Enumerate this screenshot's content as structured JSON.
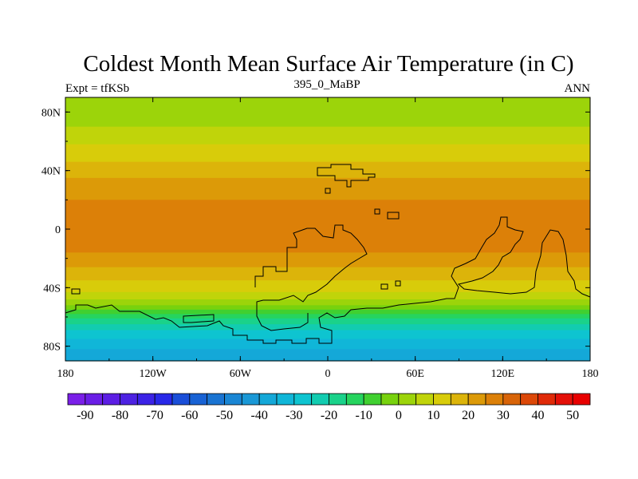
{
  "chart_data": {
    "type": "heatmap",
    "title": "Coldest Month Mean Surface Air Temperature (in C)",
    "left_label": "Expt = tfKSb",
    "center_label": "395_0_MaBP",
    "right_label": "ANN",
    "x_ticks": [
      "180",
      "120W",
      "60W",
      "0",
      "60E",
      "120E",
      "180"
    ],
    "x_tick_values": [
      -180,
      -120,
      -60,
      0,
      60,
      120,
      180
    ],
    "y_ticks": [
      "80N",
      "40N",
      "0",
      "40S",
      "80S"
    ],
    "y_tick_values": [
      80,
      40,
      0,
      -40,
      -80
    ],
    "xlim": [
      -180,
      180
    ],
    "ylim": [
      -90,
      90
    ],
    "zonal_profile": {
      "lat": [
        90,
        80,
        70,
        60,
        50,
        40,
        30,
        20,
        10,
        0,
        -10,
        -20,
        -30,
        -40,
        -45,
        -50,
        -55,
        -60,
        -65,
        -70,
        -75,
        -80,
        -85,
        -90
      ],
      "temp": [
        1,
        3,
        5,
        9,
        13,
        18,
        22,
        25,
        28,
        30,
        28,
        23,
        18,
        12,
        8,
        3,
        -5,
        -13,
        -20,
        -26,
        -30,
        -34,
        -37,
        -40
      ]
    },
    "colorbar": {
      "labels": [
        "-90",
        "-80",
        "-70",
        "-60",
        "-50",
        "-40",
        "-30",
        "-20",
        "-10",
        "0",
        "10",
        "20",
        "30",
        "40",
        "50"
      ],
      "levels": [
        -90,
        -85,
        -80,
        -75,
        -70,
        -65,
        -60,
        -55,
        -50,
        -45,
        -40,
        -35,
        -30,
        -25,
        -20,
        -15,
        -10,
        -5,
        0,
        5,
        10,
        15,
        20,
        25,
        30,
        35,
        40,
        45,
        50
      ],
      "colors": [
        "#7a1fe8",
        "#6a1ee6",
        "#5c1ee4",
        "#4d22e2",
        "#3b22e6",
        "#2828e8",
        "#1a4ed8",
        "#1862d4",
        "#1a74d2",
        "#1a86d4",
        "#1a98d6",
        "#14a8d8",
        "#10b6d8",
        "#0ec4d0",
        "#12ccb0",
        "#1ad28a",
        "#26d45e",
        "#40d030",
        "#78d20e",
        "#9cd40a",
        "#c0d40a",
        "#d8cc0a",
        "#dcb40a",
        "#dc9a08",
        "#dc8008",
        "#d86408",
        "#dc4808",
        "#e02a08",
        "#e41008",
        "#e80000"
      ]
    }
  }
}
